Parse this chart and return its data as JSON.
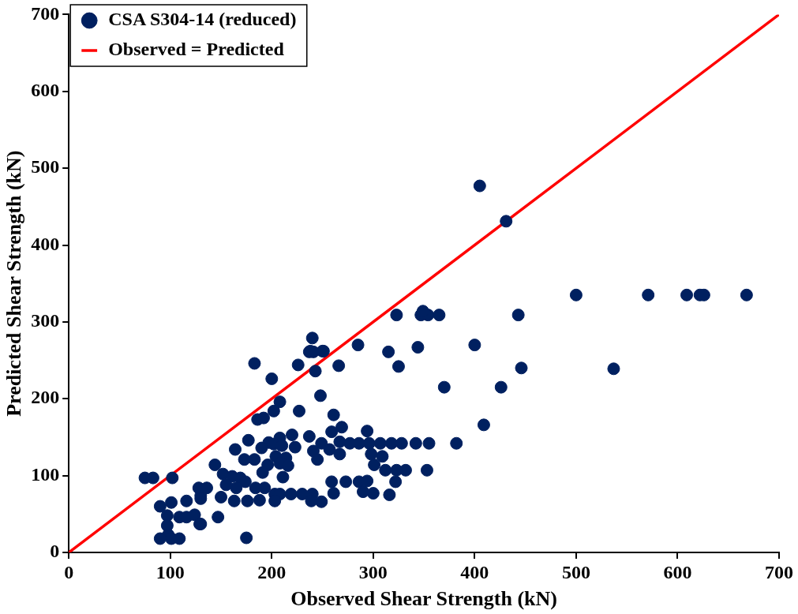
{
  "chart_data": {
    "type": "scatter",
    "xlabel": "Observed Shear Strength (kN)",
    "ylabel": "Predicted Shear Strength (kN)",
    "xlim": [
      0,
      700
    ],
    "ylim": [
      0,
      700
    ],
    "xticks": [
      0,
      100,
      200,
      300,
      400,
      500,
      600,
      700
    ],
    "yticks": [
      0,
      100,
      200,
      300,
      400,
      500,
      600,
      700
    ],
    "grid": false,
    "legend": "top left",
    "marker": "circle",
    "series": [
      {
        "name": "CSA S304-14 (reduced)",
        "color": "#002060",
        "x": [
          405,
          431,
          500,
          571,
          609,
          622,
          626,
          668,
          323,
          347,
          354,
          365,
          443,
          349,
          240,
          237,
          241,
          251,
          226,
          243,
          266,
          285,
          315,
          325,
          344,
          400,
          446,
          537,
          370,
          426,
          248,
          238,
          250,
          183,
          200,
          208,
          202,
          227,
          261,
          186,
          192,
          269,
          259,
          294,
          177,
          220,
          237,
          208,
          197,
          249,
          267,
          277,
          286,
          296,
          307,
          318,
          328,
          342,
          355,
          382,
          164,
          190,
          202,
          210,
          223,
          241,
          257,
          267,
          245,
          173,
          183,
          204,
          214,
          298,
          309,
          301,
          196,
          208,
          216,
          144,
          312,
          323,
          332,
          353,
          191,
          152,
          211,
          161,
          169,
          174,
          155,
          136,
          259,
          273,
          286,
          294,
          322,
          165,
          184,
          193,
          261,
          290,
          300,
          316,
          203,
          208,
          219,
          230,
          240,
          239,
          249,
          130,
          150,
          163,
          176,
          188,
          203,
          147,
          130,
          175,
          75,
          83,
          102,
          90,
          101,
          116,
          97,
          109,
          116,
          124,
          128,
          130,
          129,
          97,
          98,
          90,
          101,
          109,
          409
        ],
        "values": [
          477,
          431,
          335,
          335,
          335,
          335,
          335,
          335,
          309,
          309,
          309,
          309,
          309,
          314,
          279,
          261,
          261,
          262,
          244,
          236,
          243,
          270,
          261,
          242,
          267,
          270,
          240,
          239,
          215,
          215,
          204,
          262,
          262,
          246,
          226,
          196,
          184,
          184,
          179,
          173,
          175,
          163,
          157,
          158,
          146,
          153,
          151,
          149,
          143,
          142,
          144,
          142,
          142,
          142,
          142,
          142,
          142,
          142,
          142,
          142,
          134,
          136,
          141,
          139,
          137,
          132,
          134,
          128,
          121,
          121,
          121,
          125,
          123,
          128,
          125,
          114,
          114,
          116,
          113,
          114,
          107,
          107,
          107,
          107,
          104,
          102,
          98,
          99,
          97,
          92,
          88,
          84,
          92,
          92,
          92,
          93,
          92,
          84,
          84,
          84,
          77,
          79,
          77,
          75,
          76,
          76,
          76,
          76,
          76,
          67,
          66,
          74,
          72,
          67,
          67,
          68,
          67,
          46,
          37,
          19,
          97,
          97,
          97,
          60,
          65,
          67,
          48,
          46,
          46,
          49,
          84,
          70,
          37,
          35,
          23,
          18,
          18,
          18,
          166
        ]
      },
      {
        "name": "Observed = Predicted",
        "color": "#ff0000",
        "type": "line",
        "marker": "none",
        "line_style": "solid",
        "x": [
          0,
          700
        ],
        "values": [
          0,
          700
        ]
      }
    ]
  }
}
